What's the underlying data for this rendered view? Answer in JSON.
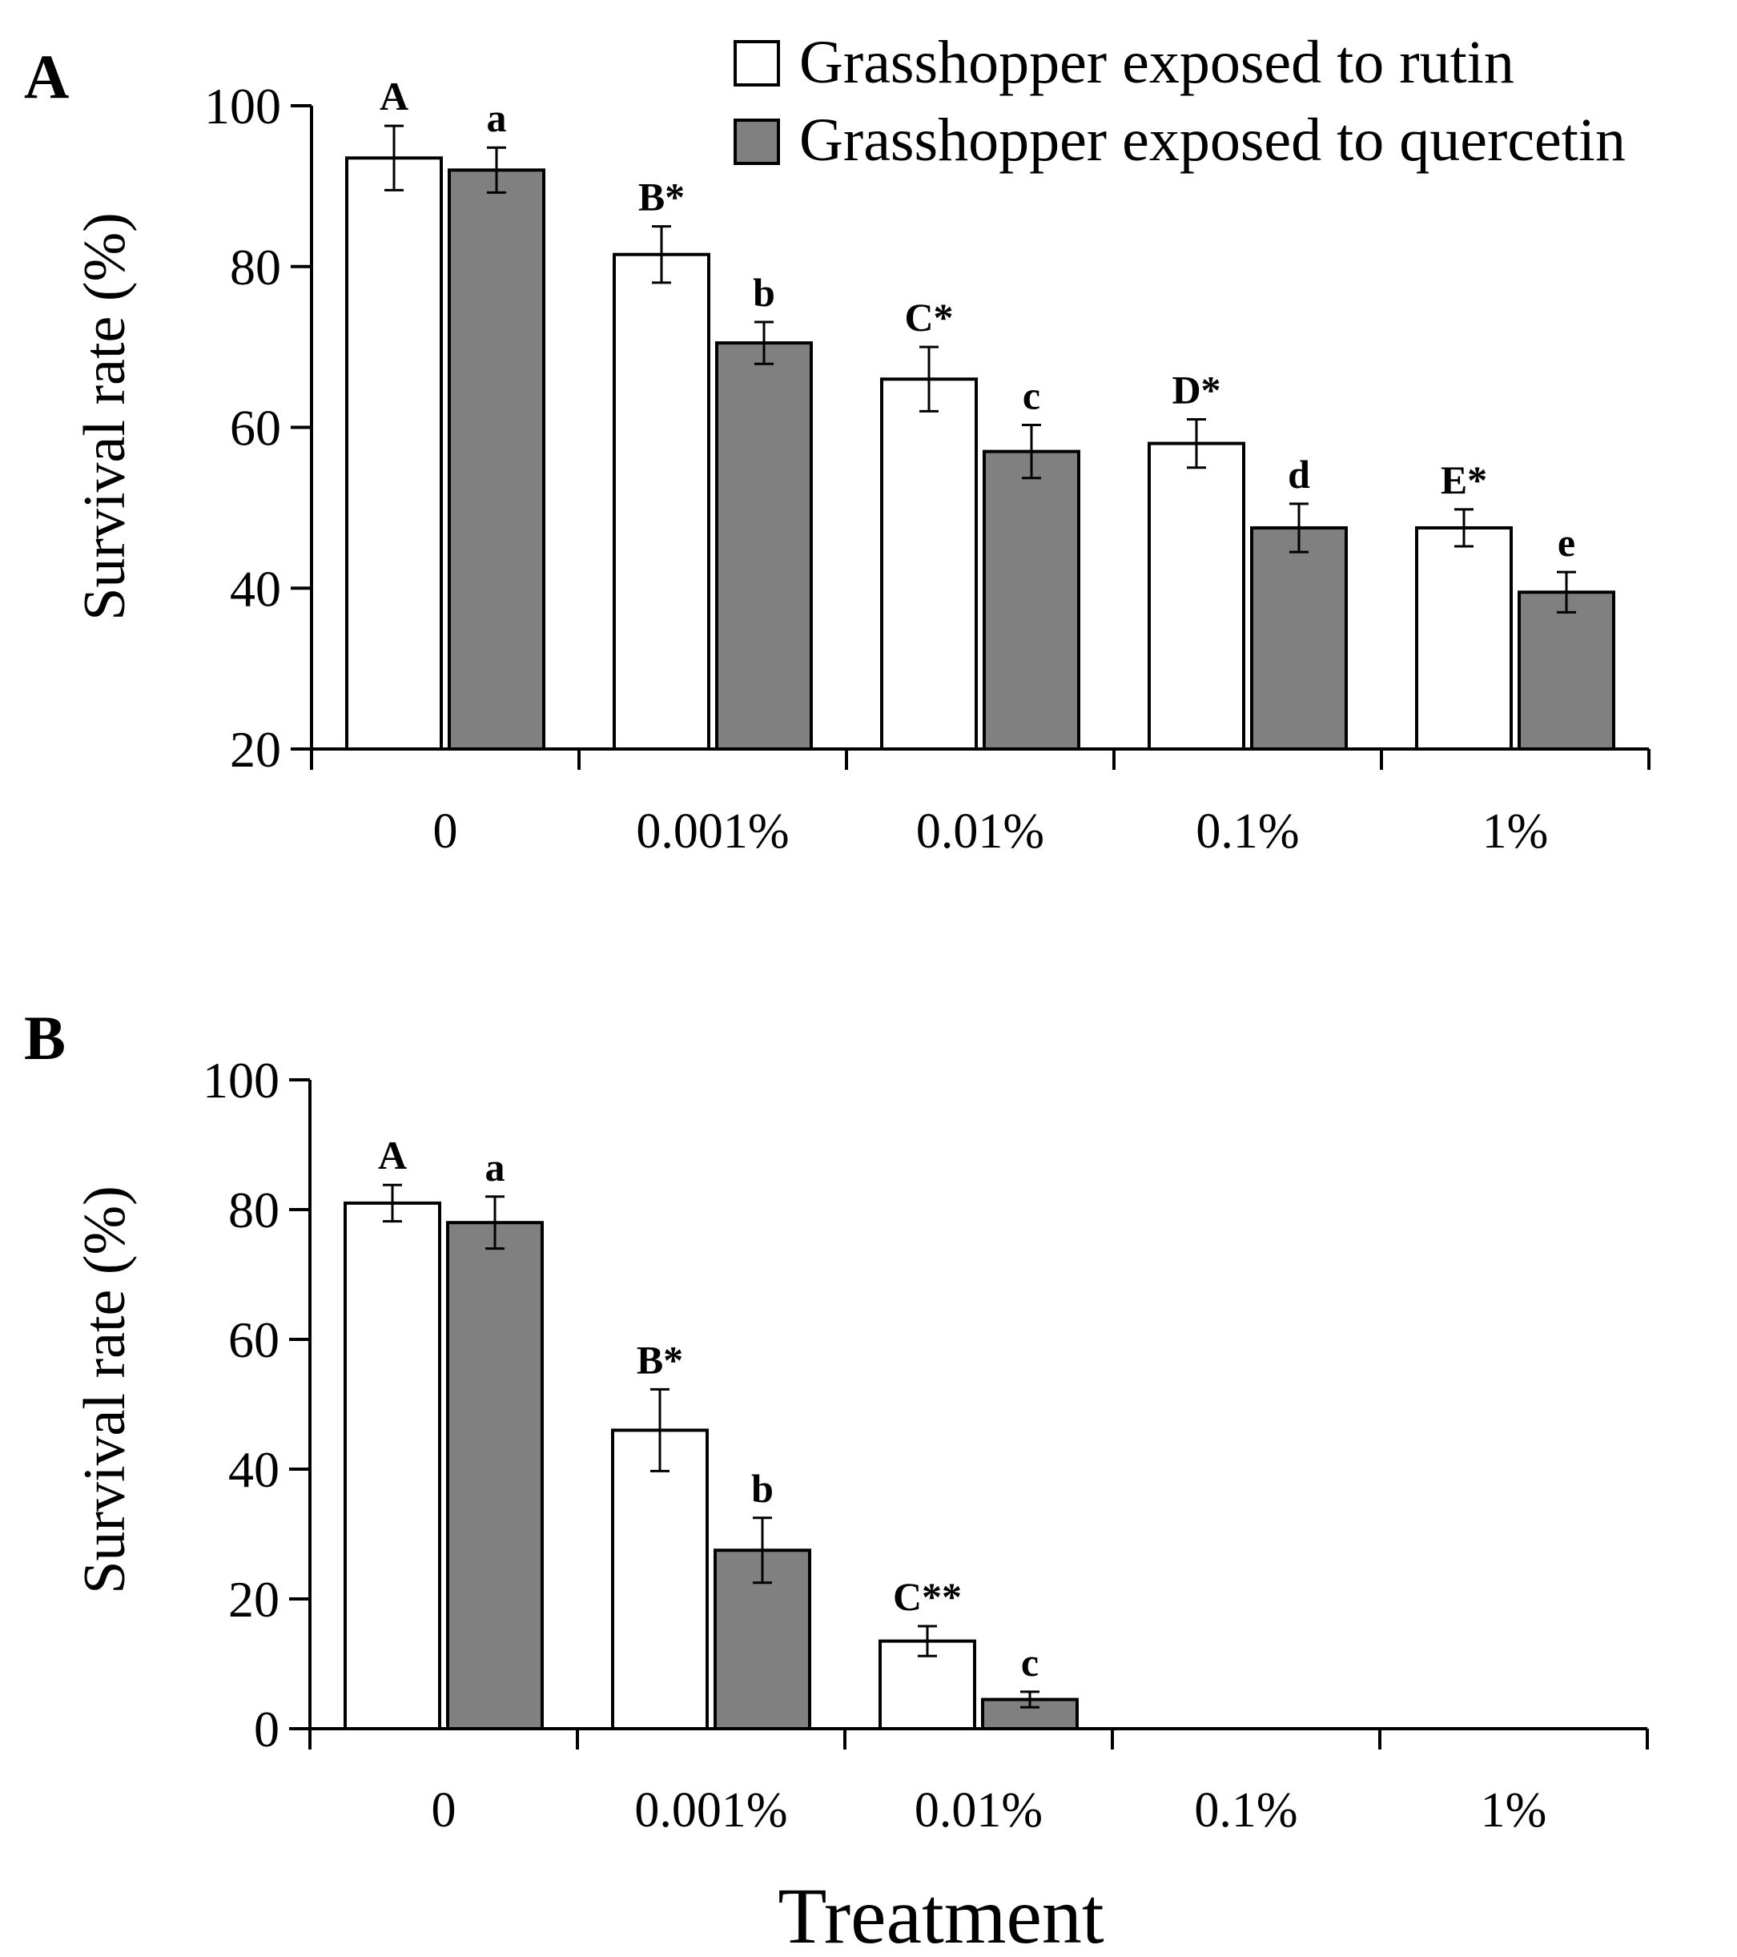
{
  "legend": {
    "entries": [
      {
        "label": "Grasshopper exposed to rutin",
        "color": "#ffffff"
      },
      {
        "label": "Grasshopper exposed to quercetin",
        "color": "#808080"
      }
    ]
  },
  "x_title": "Treatment",
  "chart_data": [
    {
      "type": "bar",
      "panel": "A",
      "categories": [
        "0",
        "0.001%",
        "0.01%",
        "0.1%",
        "1%"
      ],
      "ylabel": "Survival rate (%)",
      "ylim": [
        20,
        100
      ],
      "yticks": [
        20,
        40,
        60,
        80,
        100
      ],
      "series": [
        {
          "name": "Grasshopper exposed to rutin",
          "color": "#ffffff",
          "values": [
            93.5,
            81.5,
            66,
            58,
            47.5
          ],
          "errors": [
            4,
            3.5,
            4,
            3,
            2.3
          ],
          "labels": [
            "A",
            "B*",
            "C*",
            "D*",
            "E*"
          ]
        },
        {
          "name": "Grasshopper exposed to quercetin",
          "color": "#808080",
          "values": [
            92,
            70.5,
            57,
            47.5,
            39.5
          ],
          "errors": [
            2.8,
            2.6,
            3.3,
            3,
            2.5
          ],
          "labels": [
            "a",
            "b",
            "c",
            "d",
            "e"
          ]
        }
      ]
    },
    {
      "type": "bar",
      "panel": "B",
      "categories": [
        "0",
        "0.001%",
        "0.01%",
        "0.1%",
        "1%"
      ],
      "ylabel": "Survival rate (%)",
      "ylim": [
        0,
        100
      ],
      "yticks": [
        0,
        20,
        40,
        60,
        80,
        100
      ],
      "series": [
        {
          "name": "Grasshopper exposed to rutin",
          "color": "#ffffff",
          "values": [
            81,
            46,
            13.5,
            0,
            0
          ],
          "errors": [
            2.8,
            6.3,
            2.3,
            0,
            0
          ],
          "labels": [
            "A",
            "B*",
            "C**",
            "",
            ""
          ]
        },
        {
          "name": "Grasshopper exposed to quercetin",
          "color": "#808080",
          "values": [
            78,
            27.5,
            4.5,
            0,
            0
          ],
          "errors": [
            4,
            5,
            1.2,
            0,
            0
          ],
          "labels": [
            "a",
            "b",
            "c",
            "",
            ""
          ]
        }
      ]
    }
  ]
}
